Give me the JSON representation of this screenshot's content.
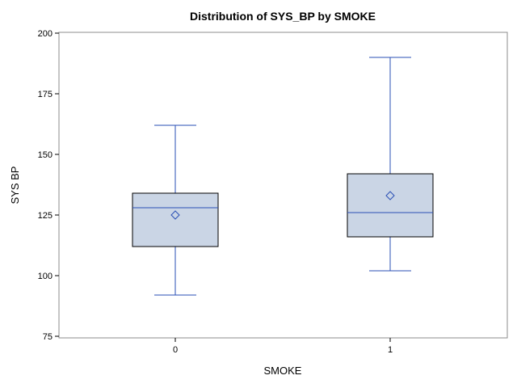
{
  "chart_data": {
    "type": "box",
    "title": "Distribution of SYS_BP by SMOKE",
    "xlabel": "SMOKE",
    "ylabel": "SYS BP",
    "ylim": [
      75,
      200
    ],
    "yticks": [
      75,
      100,
      125,
      150,
      175,
      200
    ],
    "categories": [
      "0",
      "1"
    ],
    "boxes": [
      {
        "category": "0",
        "min": 92,
        "q1": 112,
        "median": 128,
        "q3": 134,
        "max": 162,
        "mean": 125
      },
      {
        "category": "1",
        "min": 102,
        "q1": 116,
        "median": 126,
        "q3": 142,
        "max": 190,
        "mean": 133
      }
    ],
    "colors": {
      "box_fill": "#cad5e5",
      "box_edge": "#000000",
      "whisker": "#2a4fb5",
      "median": "#2a4fb5",
      "mean_marker": "#2a4fb5",
      "frame": "#8c8c8c"
    },
    "grid": false,
    "legend": "none"
  }
}
